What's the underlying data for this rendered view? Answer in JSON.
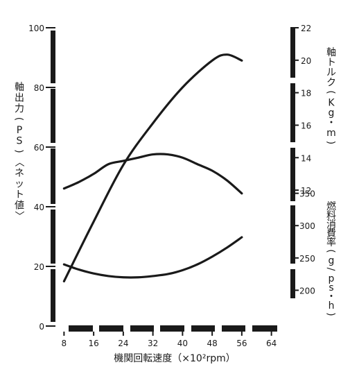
{
  "chart_data": {
    "type": "line",
    "x_axis": {
      "label": "機関回転速度（×10²rpm）",
      "range": [
        4,
        68
      ],
      "ticks": [
        "8",
        "16",
        "24",
        "32",
        "40",
        "48",
        "56",
        "64"
      ]
    },
    "y_axes": {
      "power": {
        "label_chars": [
          "軸",
          "出",
          "力",
          "(",
          "P",
          "S",
          ")",
          "〈",
          "ネ",
          "ッ",
          "ト",
          "値",
          "〉"
        ],
        "range": [
          0,
          100
        ],
        "ticks": [
          "0",
          "20",
          "40",
          "60",
          "80",
          "100"
        ]
      },
      "torque": {
        "label_chars": [
          "軸",
          "ト",
          "ル",
          "ク",
          "(",
          "K",
          "g",
          "・",
          "m",
          ")"
        ],
        "range": [
          11,
          22
        ],
        "ticks": [
          "12",
          "14",
          "16",
          "18",
          "20",
          "22"
        ]
      },
      "fuel": {
        "label_chars": [
          "燃",
          "料",
          "消",
          "費",
          "率",
          "(",
          "g",
          "/",
          "p",
          "s",
          "・",
          "h",
          ")"
        ],
        "range": [
          150,
          370
        ],
        "ticks": [
          "200",
          "250",
          "300",
          "350"
        ]
      }
    },
    "series": [
      {
        "axis": "power",
        "points": [
          [
            8,
            15
          ],
          [
            16,
            35
          ],
          [
            24,
            54
          ],
          [
            32,
            68
          ],
          [
            40,
            80
          ],
          [
            48,
            89
          ],
          [
            52,
            91
          ],
          [
            56,
            89
          ]
        ]
      },
      {
        "axis": "torque",
        "points": [
          [
            8,
            12.1
          ],
          [
            12,
            12.5
          ],
          [
            16,
            13.0
          ],
          [
            20,
            13.6
          ],
          [
            24,
            13.8
          ],
          [
            28,
            14.0
          ],
          [
            32,
            14.2
          ],
          [
            36,
            14.2
          ],
          [
            40,
            14.0
          ],
          [
            44,
            13.6
          ],
          [
            48,
            13.2
          ],
          [
            52,
            12.6
          ],
          [
            56,
            11.8
          ]
        ]
      },
      {
        "axis": "fuel",
        "points": [
          [
            8,
            240
          ],
          [
            12,
            232
          ],
          [
            16,
            226
          ],
          [
            20,
            222
          ],
          [
            24,
            220
          ],
          [
            28,
            220
          ],
          [
            32,
            222
          ],
          [
            36,
            225
          ],
          [
            40,
            231
          ],
          [
            44,
            240
          ],
          [
            48,
            252
          ],
          [
            52,
            266
          ],
          [
            56,
            282
          ]
        ]
      }
    ]
  }
}
